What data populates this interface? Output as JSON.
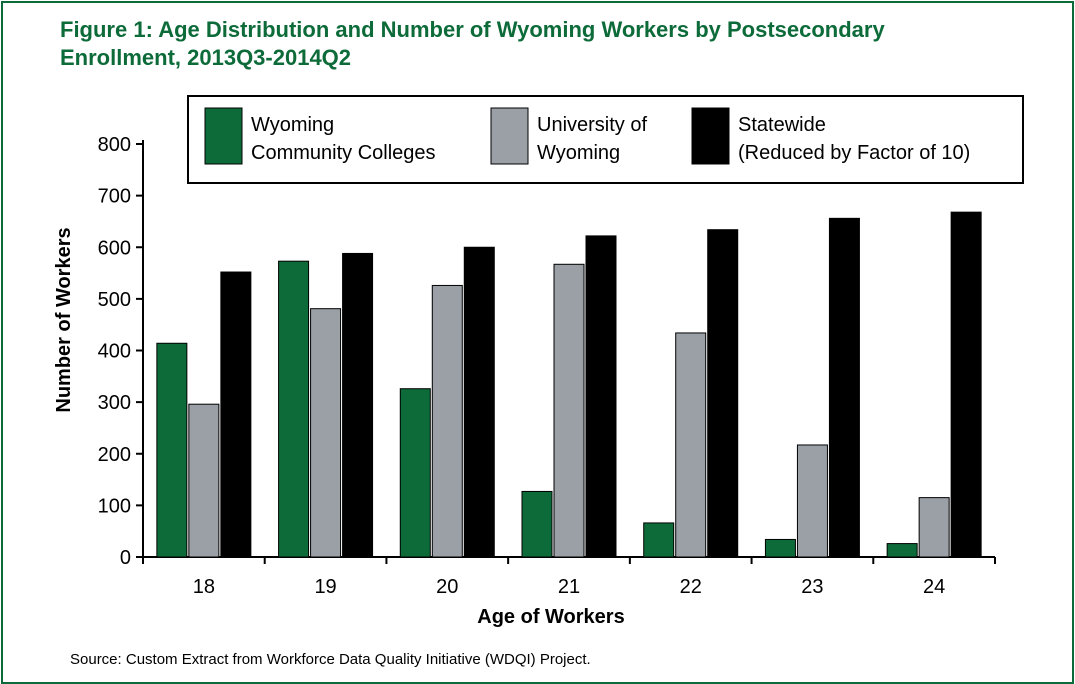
{
  "title_line1": "Figure 1: Age Distribution and Number of Wyoming Workers by Postsecondary",
  "title_line2": "Enrollment, 2013Q3-2014Q2",
  "source": "Source: Custom Extract from Workforce Data Quality Initiative (WDQI) Project.",
  "colors": {
    "border": "#0d6b3a",
    "title": "#0d6b3a",
    "community_colleges": "#0d6b3a",
    "university": "#9aa0a6",
    "statewide": "#000000"
  },
  "chart_data": {
    "type": "bar",
    "xlabel": "Age of Workers",
    "ylabel": "Number of Workers",
    "ylim": [
      0,
      800
    ],
    "yticks": [
      0,
      100,
      200,
      300,
      400,
      500,
      600,
      700,
      800
    ],
    "categories": [
      "18",
      "19",
      "20",
      "21",
      "22",
      "23",
      "24"
    ],
    "grid": false,
    "legend_position": "top",
    "series": [
      {
        "name": "Wyoming Community Colleges",
        "color": "#0d6b3a",
        "values": [
          414,
          573,
          326,
          127,
          66,
          34,
          26
        ]
      },
      {
        "name": "University of Wyoming",
        "color": "#9aa0a6",
        "values": [
          296,
          481,
          526,
          567,
          434,
          217,
          115
        ]
      },
      {
        "name": "Statewide (Reduced by Factor of 10)",
        "color": "#000000",
        "values": [
          552,
          588,
          600,
          622,
          634,
          656,
          668
        ]
      }
    ],
    "legend_lines": [
      [
        "Wyoming",
        "Community Colleges"
      ],
      [
        "University of",
        "Wyoming"
      ],
      [
        "Statewide",
        "(Reduced by Factor of 10)"
      ]
    ]
  }
}
